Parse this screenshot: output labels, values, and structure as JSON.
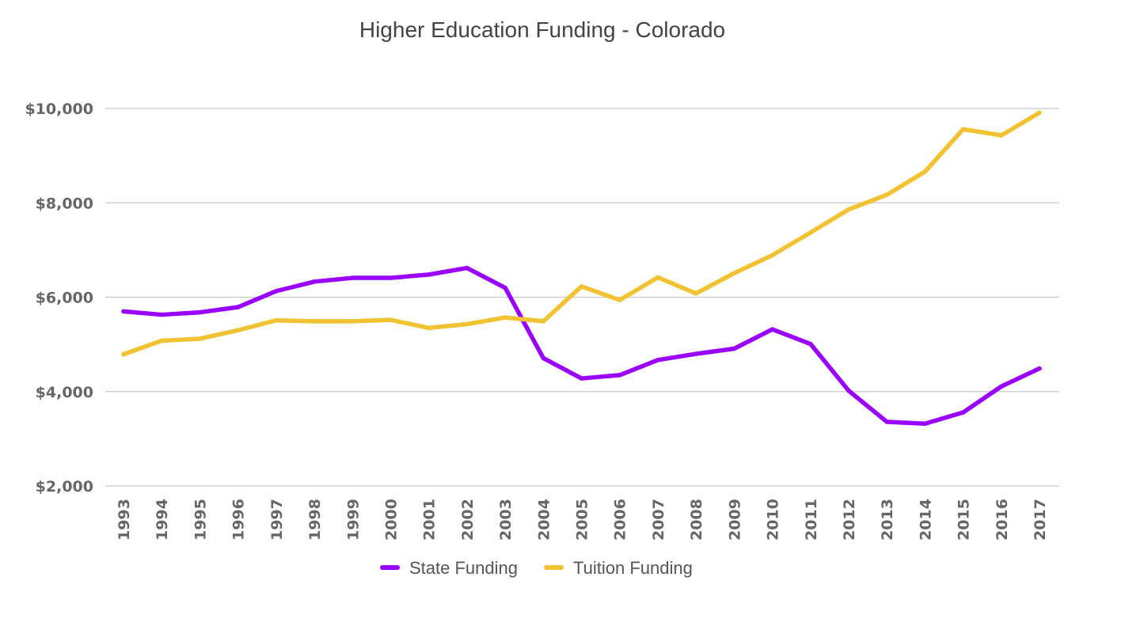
{
  "chart_data": {
    "type": "line",
    "title": "Higher Education Funding - Colorado",
    "xlabel": "",
    "ylabel": "",
    "categories": [
      "1993",
      "1994",
      "1995",
      "1996",
      "1997",
      "1998",
      "1999",
      "2000",
      "2001",
      "2002",
      "2003",
      "2004",
      "2005",
      "2006",
      "2007",
      "2008",
      "2009",
      "2010",
      "2011",
      "2012",
      "2013",
      "2014",
      "2015",
      "2016",
      "2017"
    ],
    "ylim": [
      2000,
      10000
    ],
    "yticks": [
      2000,
      4000,
      6000,
      8000,
      10000
    ],
    "ytick_labels": [
      "$2,000",
      "$4,000",
      "$6,000",
      "$8,000",
      "$10,000"
    ],
    "grid": true,
    "legend_position": "bottom",
    "series": [
      {
        "name": "State Funding",
        "color": "#9900ff",
        "values": [
          5700,
          5630,
          5680,
          5790,
          6130,
          6330,
          6410,
          6410,
          6480,
          6620,
          6200,
          4710,
          4280,
          4350,
          4670,
          4800,
          4910,
          5320,
          5010,
          4020,
          3360,
          3320,
          3560,
          4110,
          4490
        ]
      },
      {
        "name": "Tuition Funding",
        "color": "#f1c232",
        "values": [
          4790,
          5080,
          5120,
          5300,
          5510,
          5490,
          5490,
          5520,
          5350,
          5430,
          5570,
          5490,
          6230,
          5940,
          6420,
          6080,
          6510,
          6890,
          7370,
          7860,
          8170,
          8660,
          9560,
          9430,
          9910
        ]
      }
    ]
  }
}
